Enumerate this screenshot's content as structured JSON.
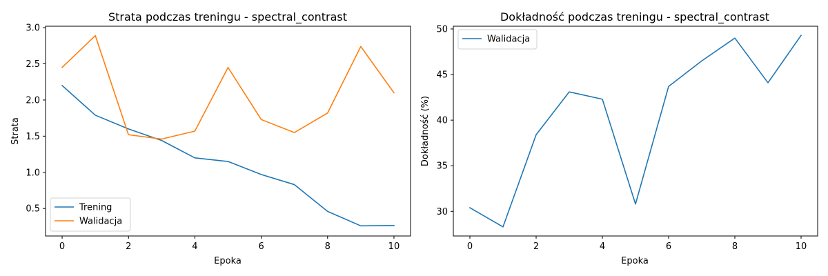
{
  "chart_data": [
    {
      "type": "line",
      "title": "Strata podczas treningu - spectral_contrast",
      "xlabel": "Epoka",
      "ylabel": "Strata",
      "xlim": [
        -0.5,
        10.5
      ],
      "ylim": [
        0.12,
        3.02
      ],
      "xticks": [
        0,
        2,
        4,
        6,
        8,
        10
      ],
      "yticks": [
        0.5,
        1.0,
        1.5,
        2.0,
        2.5,
        3.0
      ],
      "ytick_labels": [
        "0.5",
        "1.0",
        "1.5",
        "2.0",
        "2.5",
        "3.0"
      ],
      "legend_position": "lower-left",
      "grid": false,
      "x": [
        0,
        1,
        2,
        3,
        4,
        5,
        6,
        7,
        8,
        9,
        10
      ],
      "series": [
        {
          "name": "Trening",
          "color": "#1f77b4",
          "values": [
            2.2,
            1.79,
            1.6,
            1.44,
            1.2,
            1.15,
            0.97,
            0.83,
            0.46,
            0.26,
            0.265
          ]
        },
        {
          "name": "Walidacja",
          "color": "#ff7f0e",
          "values": [
            2.45,
            2.89,
            1.52,
            1.46,
            1.57,
            2.45,
            1.73,
            1.55,
            1.82,
            2.74,
            2.1
          ]
        }
      ]
    },
    {
      "type": "line",
      "title": "Dokładność podczas treningu - spectral_contrast",
      "xlabel": "Epoka",
      "ylabel": "Dokładność (%)",
      "xlim": [
        -0.5,
        10.5
      ],
      "ylim": [
        27.3,
        50.3
      ],
      "xticks": [
        0,
        2,
        4,
        6,
        8,
        10
      ],
      "yticks": [
        30,
        35,
        40,
        45,
        50
      ],
      "ytick_labels": [
        "30",
        "35",
        "40",
        "45",
        "50"
      ],
      "legend_position": "upper-left",
      "grid": false,
      "x": [
        0,
        1,
        2,
        3,
        4,
        5,
        6,
        7,
        8,
        9,
        10
      ],
      "series": [
        {
          "name": "Walidacja",
          "color": "#1f77b4",
          "values": [
            30.4,
            28.3,
            38.4,
            43.1,
            42.3,
            30.8,
            43.7,
            46.5,
            49.0,
            44.1,
            49.3
          ]
        }
      ]
    }
  ]
}
